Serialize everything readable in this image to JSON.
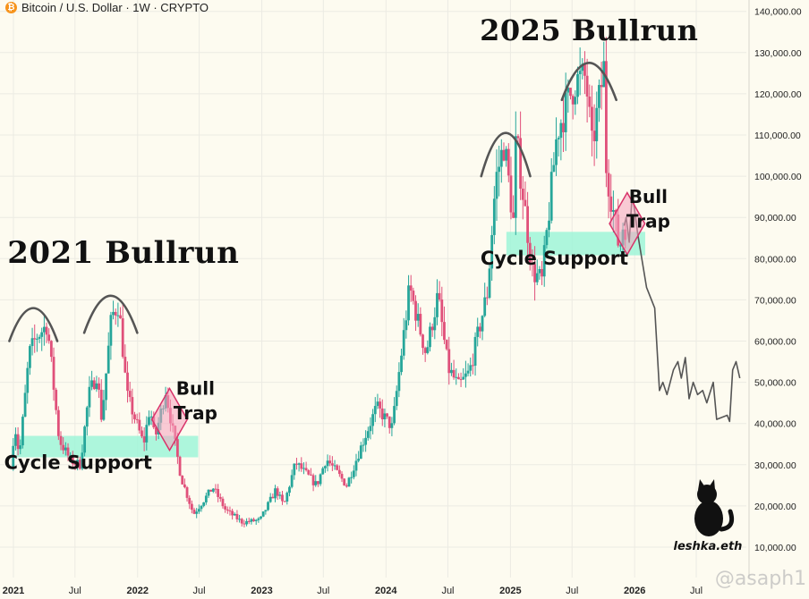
{
  "header": {
    "symbol_text": "Bitcoin / U.S. Dollar · 1W · CRYPTO",
    "coin_glyph": "₿",
    "coin_color": "#f7931a"
  },
  "watermark": {
    "author": "leshka.eth",
    "source": "@asaph1"
  },
  "colors": {
    "up": "#26a69a",
    "down": "#e0507a",
    "support": "#9ff5d8",
    "trap": "#f6a3bd",
    "trap_border": "#d8336a",
    "arc": "#555555",
    "projection": "#555555",
    "grid": "#ecebe3"
  },
  "chart_data": {
    "type": "candlestick",
    "title": "",
    "xlabel": "",
    "ylabel": "",
    "y_range": [
      0,
      150000
    ],
    "x_ticks": [
      "2021",
      "Jul",
      "2022",
      "Jul",
      "2023",
      "Jul",
      "2024",
      "Jul",
      "2025",
      "Jul",
      "2026",
      "Jul"
    ],
    "y_ticks": [
      "10,000.00",
      "20,000.00",
      "30,000.00",
      "40,000.00",
      "50,000.00",
      "60,000.00",
      "70,000.00",
      "80,000.00",
      "90,000.00",
      "100,000.00",
      "110,000.00",
      "120,000.00",
      "130,000.00",
      "140,000.00"
    ],
    "y_tick_values": [
      10000,
      20000,
      30000,
      40000,
      50000,
      60000,
      70000,
      80000,
      90000,
      100000,
      110000,
      120000,
      130000,
      140000
    ],
    "price_path": [
      [
        "2020-12-28",
        29000
      ],
      [
        "2021-01-08",
        40000
      ],
      [
        "2021-01-22",
        32000
      ],
      [
        "2021-02-20",
        57000
      ],
      [
        "2021-03-13",
        61000
      ],
      [
        "2021-04-14",
        64000
      ],
      [
        "2021-05-19",
        36000
      ],
      [
        "2021-06-22",
        31000
      ],
      [
        "2021-07-20",
        30000
      ],
      [
        "2021-08-14",
        47000
      ],
      [
        "2021-09-07",
        52000
      ],
      [
        "2021-09-21",
        41000
      ],
      [
        "2021-10-20",
        66000
      ],
      [
        "2021-11-10",
        69000
      ],
      [
        "2021-12-04",
        47000
      ],
      [
        "2022-01-22",
        35000
      ],
      [
        "2022-02-10",
        44000
      ],
      [
        "2022-02-24",
        36000
      ],
      [
        "2022-03-28",
        48000
      ],
      [
        "2022-05-12",
        27000
      ],
      [
        "2022-06-18",
        18000
      ],
      [
        "2022-08-14",
        24500
      ],
      [
        "2022-09-20",
        19000
      ],
      [
        "2022-11-09",
        16000
      ],
      [
        "2022-12-31",
        16600
      ],
      [
        "2023-02-15",
        24000
      ],
      [
        "2023-03-10",
        20000
      ],
      [
        "2023-04-14",
        30500
      ],
      [
        "2023-06-15",
        25000
      ],
      [
        "2023-07-13",
        31500
      ],
      [
        "2023-09-11",
        25000
      ],
      [
        "2023-10-24",
        34500
      ],
      [
        "2023-12-08",
        44000
      ],
      [
        "2024-01-23",
        39000
      ],
      [
        "2024-03-14",
        73000
      ],
      [
        "2024-05-01",
        57000
      ],
      [
        "2024-06-05",
        71000
      ],
      [
        "2024-07-05",
        53500
      ],
      [
        "2024-08-05",
        49000
      ],
      [
        "2024-09-06",
        52500
      ],
      [
        "2024-10-29",
        72000
      ],
      [
        "2024-11-22",
        99000
      ],
      [
        "2024-12-17",
        108000
      ],
      [
        "2025-01-13",
        89000
      ],
      [
        "2025-01-21",
        109500
      ],
      [
        "2025-03-10",
        77000
      ],
      [
        "2025-04-07",
        74500
      ],
      [
        "2025-05-22",
        111000
      ],
      [
        "2025-07-14",
        123000
      ],
      [
        "2025-08-14",
        124000
      ],
      [
        "2025-09-01",
        107000
      ],
      [
        "2025-10-06",
        126000
      ],
      [
        "2025-10-10",
        104000
      ],
      [
        "2025-11-21",
        82000
      ],
      [
        "2025-12-01",
        88000
      ]
    ],
    "projection": [
      [
        "2025-12-01",
        88000
      ],
      [
        "2025-12-07",
        90000
      ],
      [
        "2025-12-16",
        84000
      ],
      [
        "2025-12-25",
        96000
      ],
      [
        "2026-01-10",
        86000
      ],
      [
        "2026-02-05",
        73000
      ],
      [
        "2026-03-01",
        68000
      ],
      [
        "2026-03-15",
        48000
      ],
      [
        "2026-03-25",
        50000
      ],
      [
        "2026-04-06",
        47000
      ],
      [
        "2026-04-25",
        53000
      ],
      [
        "2026-05-08",
        55000
      ],
      [
        "2026-05-18",
        51000
      ],
      [
        "2026-05-30",
        56000
      ],
      [
        "2026-06-10",
        46000
      ],
      [
        "2026-06-22",
        50000
      ],
      [
        "2026-07-05",
        47000
      ],
      [
        "2026-07-20",
        48000
      ],
      [
        "2026-08-01",
        45000
      ],
      [
        "2026-08-20",
        50000
      ],
      [
        "2026-08-30",
        41000
      ],
      [
        "2026-09-30",
        42000
      ],
      [
        "2026-10-07",
        40500
      ],
      [
        "2026-10-16",
        53000
      ],
      [
        "2026-10-26",
        55000
      ],
      [
        "2026-11-06",
        51000
      ]
    ],
    "annotations": [
      {
        "text": "2021  Bullrun",
        "date": "2021-11-20",
        "value": 79000,
        "size": 34
      },
      {
        "text": "2025 Bullrun",
        "date": "2025-08-20",
        "value": 133000,
        "size": 32
      },
      {
        "text": "Cycle Support",
        "date": "2021-07-10",
        "value": 29000,
        "size": 21
      },
      {
        "text": "Cycle Support",
        "date": "2025-05-10",
        "value": 78500,
        "size": 21
      },
      {
        "text": "Bull",
        "date": "2022-06-20",
        "value": 47000,
        "size": 20
      },
      {
        "text": "Trap",
        "date": "2022-06-20",
        "value": 41000,
        "size": 20
      },
      {
        "text": "Bull",
        "date": "2026-02-10",
        "value": 93500,
        "size": 20
      },
      {
        "text": "Trap",
        "date": "2026-02-10",
        "value": 87500,
        "size": 20
      }
    ],
    "support_zones": [
      {
        "from": "2021-01-10",
        "to": "2022-06-28",
        "low": 31800,
        "high": 37000
      },
      {
        "from": "2024-12-20",
        "to": "2026-02-01",
        "low": 80800,
        "high": 86500
      }
    ],
    "bull_traps": [
      {
        "center_date": "2022-04-05",
        "center_value": 41000,
        "half_width_days": 52,
        "half_height_value": 7500
      },
      {
        "center_date": "2025-12-10",
        "center_value": 88500,
        "half_width_days": 52,
        "half_height_value": 7500
      }
    ],
    "top_arcs": [
      {
        "from": "2020-12-20",
        "to": "2021-05-10",
        "base": 60000,
        "peak": 68000
      },
      {
        "from": "2021-07-28",
        "to": "2021-12-31",
        "base": 62000,
        "peak": 71000
      },
      {
        "from": "2024-10-07",
        "to": "2025-02-28",
        "base": 100000,
        "peak": 110500
      },
      {
        "from": "2025-06-01",
        "to": "2025-11-08",
        "base": 118500,
        "peak": 127500
      }
    ]
  }
}
